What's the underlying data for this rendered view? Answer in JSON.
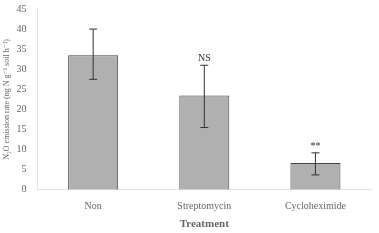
{
  "chart_data": {
    "type": "bar",
    "categories": [
      "Non",
      "Streptomycin",
      "Cycloheximide"
    ],
    "values": [
      33.5,
      23.5,
      6.7
    ],
    "errors_upper": [
      6.5,
      7.5,
      2.5
    ],
    "errors_lower": [
      6.0,
      8.0,
      3.0
    ],
    "color": "#b0b0b0",
    "xlabel": "Treatment",
    "ylabel": "N₂O emission rate (ng N g⁻¹ soil h⁻¹)",
    "ylim": [
      0,
      45
    ],
    "yticks": [
      0,
      5,
      10,
      15,
      20,
      25,
      30,
      35,
      40,
      45
    ],
    "annotations": [
      {
        "text": "NS",
        "x": "Streptomycin",
        "y": 31.5
      },
      {
        "text": "**",
        "x": "Cycloheximide",
        "y": 9.5
      }
    ],
    "grid": false
  }
}
